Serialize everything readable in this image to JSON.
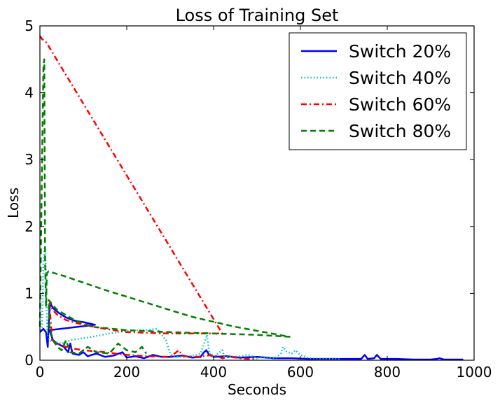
{
  "chart_data": {
    "type": "line",
    "title": "Loss of Training Set",
    "xlabel": "Seconds",
    "ylabel": "Loss",
    "xlim": [
      0,
      1000
    ],
    "ylim": [
      0,
      5
    ],
    "xticks": [
      0,
      200,
      400,
      600,
      800,
      1000
    ],
    "yticks": [
      0,
      1,
      2,
      3,
      4,
      5
    ],
    "grid": false,
    "legend_position": "top-right",
    "series": [
      {
        "name": "Switch 20%",
        "color": "#0000ff",
        "style": "solid",
        "points": [
          [
            0,
            0.42
          ],
          [
            8,
            0.47
          ],
          [
            14,
            0.42
          ],
          [
            18,
            0.2
          ],
          [
            20,
            0.5
          ],
          [
            22,
            0.75
          ],
          [
            24,
            0.85
          ],
          [
            30,
            0.78
          ],
          [
            45,
            0.7
          ],
          [
            60,
            0.64
          ],
          [
            80,
            0.59
          ],
          [
            100,
            0.57
          ],
          [
            127,
            0.53
          ],
          [
            22,
            0.45
          ],
          [
            30,
            0.3
          ],
          [
            40,
            0.25
          ],
          [
            55,
            0.2
          ],
          [
            65,
            0.12
          ],
          [
            70,
            0.25
          ],
          [
            75,
            0.1
          ],
          [
            90,
            0.08
          ],
          [
            100,
            0.12
          ],
          [
            110,
            0.06
          ],
          [
            130,
            0.1
          ],
          [
            150,
            0.05
          ],
          [
            170,
            0.07
          ],
          [
            190,
            0.12
          ],
          [
            200,
            0.04
          ],
          [
            220,
            0.06
          ],
          [
            240,
            0.03
          ],
          [
            260,
            0.08
          ],
          [
            280,
            0.05
          ],
          [
            300,
            0.05
          ],
          [
            330,
            0.07
          ],
          [
            350,
            0.04
          ],
          [
            370,
            0.05
          ],
          [
            378,
            0.12
          ],
          [
            383,
            0.15
          ],
          [
            390,
            0.08
          ],
          [
            400,
            0.05
          ],
          [
            430,
            0.06
          ],
          [
            460,
            0.04
          ],
          [
            500,
            0.05
          ],
          [
            540,
            0.03
          ],
          [
            580,
            0.03
          ],
          [
            620,
            0.02
          ],
          [
            660,
            0.02
          ],
          [
            700,
            0.02
          ],
          [
            740,
            0.02
          ],
          [
            748,
            0.08
          ],
          [
            755,
            0.02
          ],
          [
            770,
            0.03
          ],
          [
            776,
            0.08
          ],
          [
            785,
            0.02
          ],
          [
            820,
            0.02
          ],
          [
            860,
            0.01
          ],
          [
            900,
            0.01
          ],
          [
            915,
            0.02
          ],
          [
            920,
            0.03
          ],
          [
            930,
            0.01
          ],
          [
            975,
            0.01
          ]
        ]
      },
      {
        "name": "Switch 40%",
        "color": "#00bfbf",
        "style": "dotted",
        "points": [
          [
            0,
            0.45
          ],
          [
            5,
            0.5
          ],
          [
            8,
            1.5
          ],
          [
            12,
            1.7
          ],
          [
            14,
            1.3
          ],
          [
            16,
            0.6
          ],
          [
            18,
            0.35
          ],
          [
            22,
            0.3
          ],
          [
            30,
            0.28
          ],
          [
            40,
            0.26
          ],
          [
            50,
            0.25
          ],
          [
            70,
            0.3
          ],
          [
            90,
            0.32
          ],
          [
            120,
            0.35
          ],
          [
            160,
            0.4
          ],
          [
            200,
            0.44
          ],
          [
            240,
            0.45
          ],
          [
            270,
            0.47
          ],
          [
            290,
            0.3
          ],
          [
            300,
            0.1
          ],
          [
            310,
            0.05
          ],
          [
            330,
            0.05
          ],
          [
            360,
            0.08
          ],
          [
            370,
            0.1
          ],
          [
            380,
            0.28
          ],
          [
            385,
            0.38
          ],
          [
            390,
            0.1
          ],
          [
            400,
            0.05
          ],
          [
            420,
            0.15
          ],
          [
            425,
            0.05
          ],
          [
            450,
            0.05
          ],
          [
            480,
            0.08
          ],
          [
            500,
            0.03
          ],
          [
            520,
            0.05
          ],
          [
            540,
            0.02
          ],
          [
            555,
            0.1
          ],
          [
            560,
            0.2
          ],
          [
            568,
            0.13
          ],
          [
            580,
            0.1
          ],
          [
            588,
            0.15
          ],
          [
            600,
            0.08
          ],
          [
            620,
            0.03
          ],
          [
            660,
            0.02
          ],
          [
            690,
            0.02
          ]
        ]
      },
      {
        "name": "Switch 60%",
        "color": "#ff0000",
        "style": "dashdot",
        "points": [
          [
            0,
            4.85
          ],
          [
            5,
            4.8
          ],
          [
            10,
            4.78
          ],
          [
            15,
            4.75
          ],
          [
            420,
            0.4
          ],
          [
            380,
            0.4
          ],
          [
            300,
            0.4
          ],
          [
            200,
            0.42
          ],
          [
            150,
            0.47
          ],
          [
            100,
            0.53
          ],
          [
            60,
            0.6
          ],
          [
            40,
            0.68
          ],
          [
            30,
            0.75
          ],
          [
            22,
            0.85
          ],
          [
            28,
            0.3
          ],
          [
            40,
            0.25
          ],
          [
            60,
            0.2
          ],
          [
            80,
            0.17
          ],
          [
            100,
            0.15
          ],
          [
            150,
            0.12
          ],
          [
            200,
            0.08
          ],
          [
            250,
            0.06
          ],
          [
            300,
            0.05
          ],
          [
            320,
            0.15
          ],
          [
            330,
            0.06
          ],
          [
            360,
            0.05
          ],
          [
            400,
            0.08
          ],
          [
            420,
            0.03
          ],
          [
            440,
            0.05
          ],
          [
            460,
            0.03
          ],
          [
            480,
            0.02
          ],
          [
            500,
            0.02
          ]
        ]
      },
      {
        "name": "Switch 80%",
        "color": "#008000",
        "style": "dashed",
        "points": [
          [
            0,
            0.5
          ],
          [
            5,
            3.0
          ],
          [
            8,
            4.4
          ],
          [
            10,
            4.5
          ],
          [
            12,
            1.5
          ],
          [
            14,
            0.8
          ],
          [
            16,
            1.3
          ],
          [
            20,
            1.33
          ],
          [
            60,
            1.25
          ],
          [
            150,
            1.05
          ],
          [
            250,
            0.85
          ],
          [
            350,
            0.65
          ],
          [
            450,
            0.5
          ],
          [
            575,
            0.35
          ],
          [
            500,
            0.38
          ],
          [
            400,
            0.4
          ],
          [
            300,
            0.42
          ],
          [
            200,
            0.45
          ],
          [
            120,
            0.5
          ],
          [
            80,
            0.6
          ],
          [
            40,
            0.75
          ],
          [
            20,
            0.9
          ],
          [
            22,
            0.5
          ],
          [
            30,
            0.3
          ],
          [
            40,
            0.2
          ],
          [
            50,
            0.15
          ],
          [
            60,
            0.3
          ],
          [
            70,
            0.12
          ],
          [
            90,
            0.1
          ],
          [
            110,
            0.2
          ],
          [
            130,
            0.12
          ],
          [
            160,
            0.1
          ],
          [
            180,
            0.25
          ],
          [
            200,
            0.15
          ],
          [
            220,
            0.12
          ],
          [
            235,
            0.2
          ],
          [
            245,
            0.1
          ]
        ]
      }
    ]
  }
}
